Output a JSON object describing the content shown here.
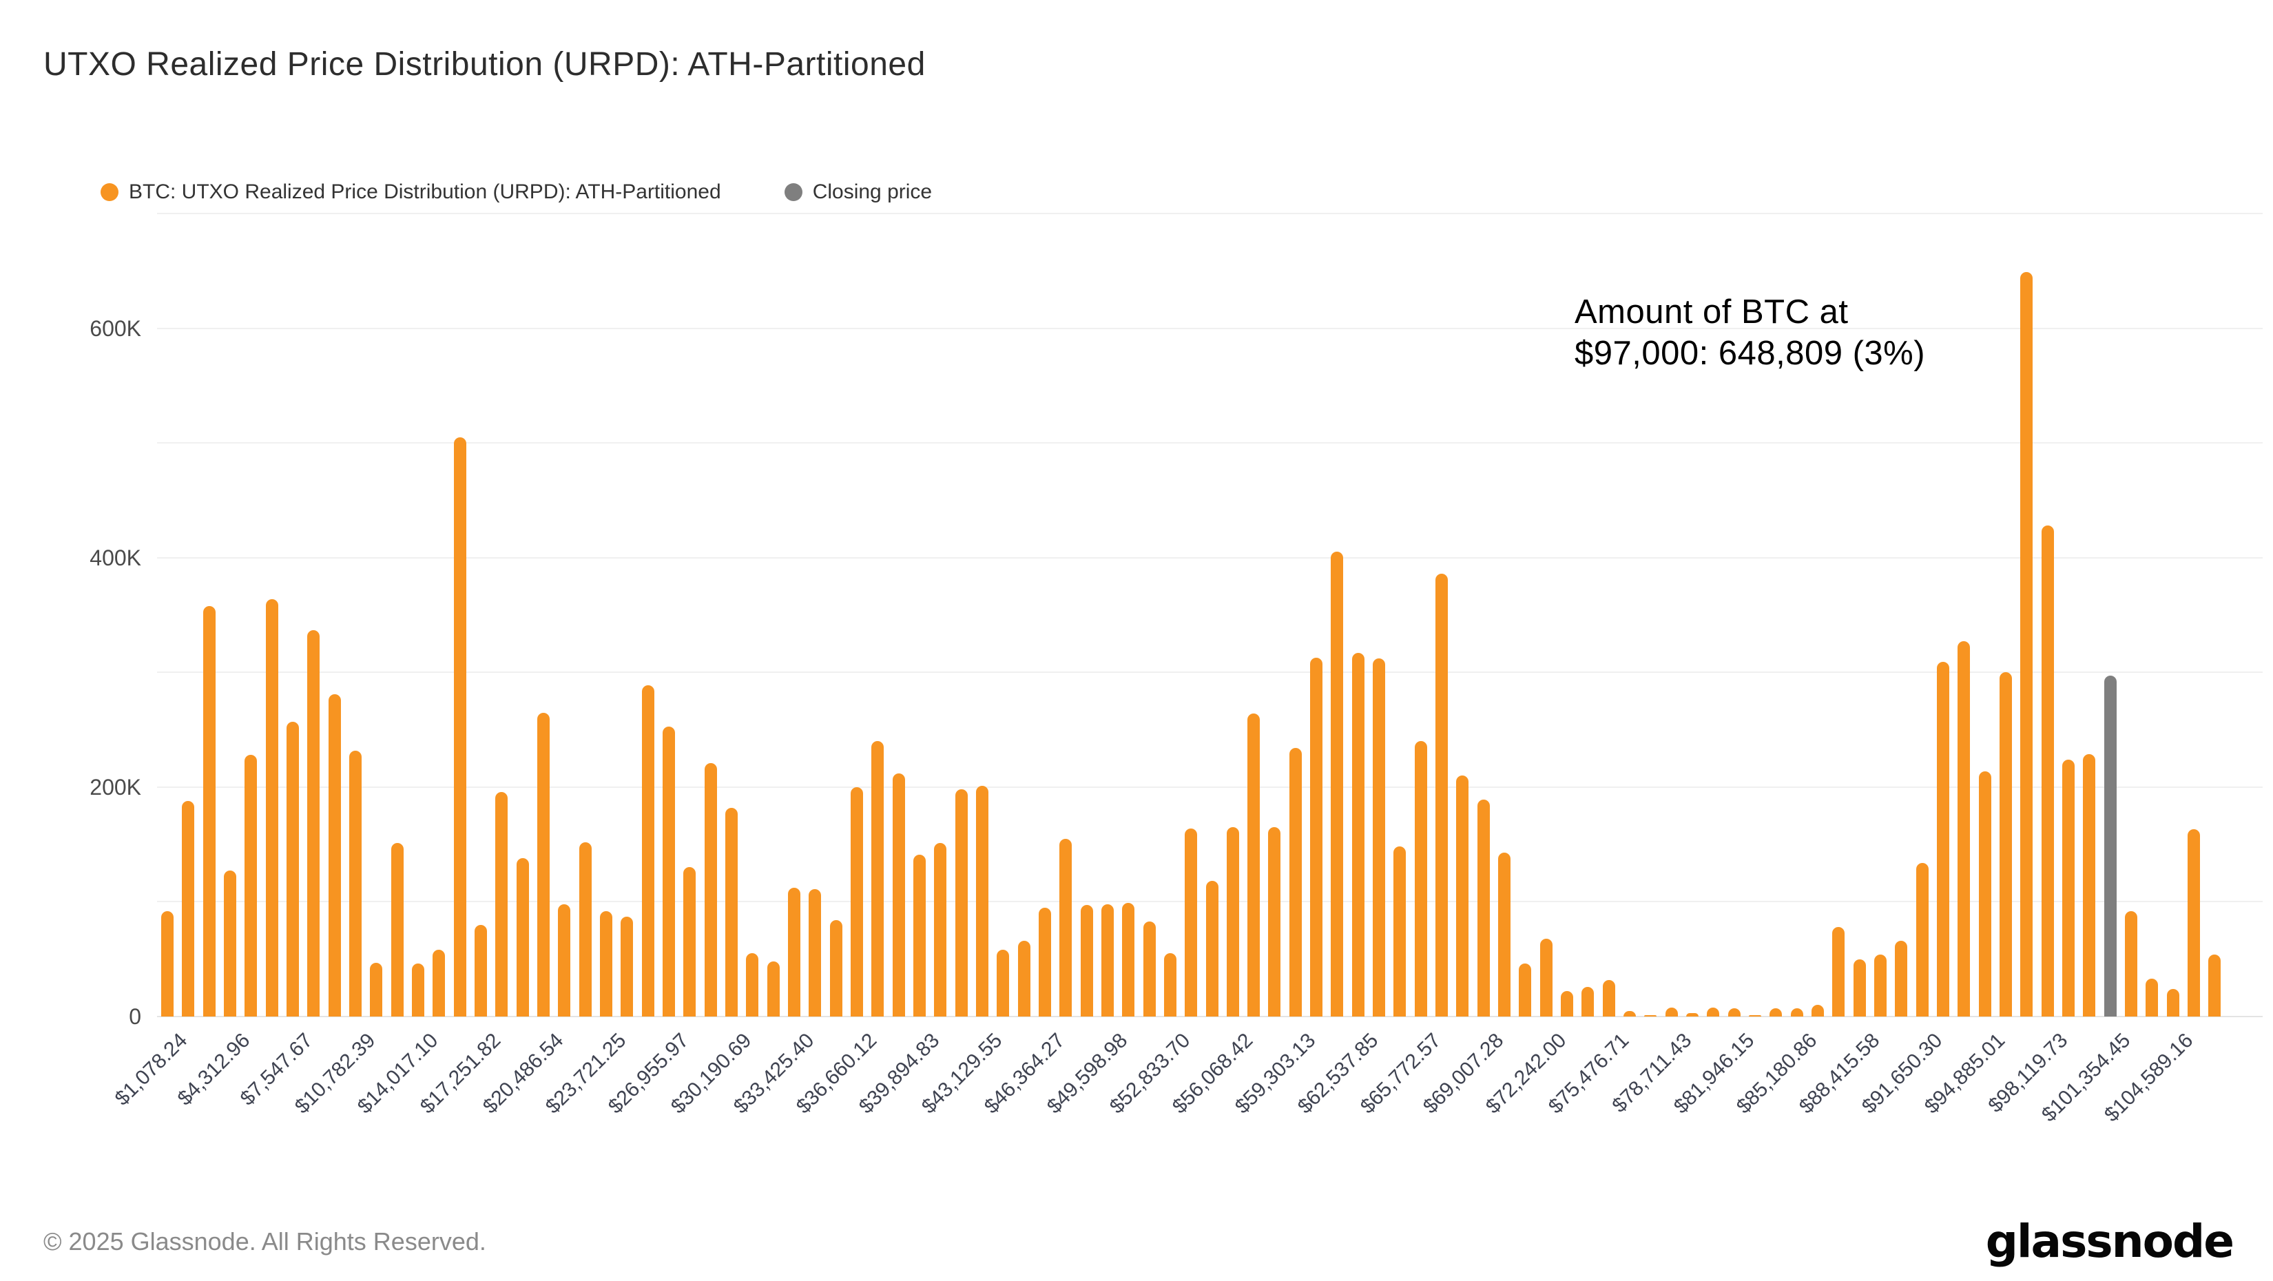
{
  "header": {
    "title": "UTXO Realized Price Distribution (URPD): ATH-Partitioned"
  },
  "legend": {
    "items": [
      {
        "label": "BTC: UTXO Realized Price Distribution (URPD): ATH-Partitioned",
        "color": "#F79421"
      },
      {
        "label": "Closing price",
        "color": "#7F7F7F"
      }
    ]
  },
  "annotation": {
    "line1": "Amount of BTC at",
    "line2": "$97,000: 648,809 (3%)"
  },
  "footer": {
    "copyright": "© 2025 Glassnode. All Rights Reserved.",
    "brand": "glassnode"
  },
  "colors": {
    "bar": "#F79421",
    "closing_bar": "#7F7F7F",
    "gridline": "#F0F0F0",
    "axis_line": "#E4E4E4",
    "axis_text": "#4A4A4A",
    "xlabel_text": "#3F4351"
  },
  "chart_data": {
    "type": "bar",
    "title": "UTXO Realized Price Distribution (URPD): ATH-Partitioned",
    "xlabel": "",
    "ylabel": "",
    "values_unit": "BTC",
    "ylim": [
      0,
      700000
    ],
    "grid": true,
    "legend_position": "top-left",
    "ytick_values": [
      0,
      200000,
      400000,
      600000
    ],
    "ytick_labels": [
      "0",
      "200K",
      "400K",
      "600K"
    ],
    "x_labels": [
      "$1,078.24",
      "$4,312.96",
      "$7,547.67",
      "$10,782.39",
      "$14,017.10",
      "$17,251.82",
      "$20,486.54",
      "$23,721.25",
      "$26,955.97",
      "$30,190.69",
      "$33,425.40",
      "$36,660.12",
      "$39,894.83",
      "$43,129.55",
      "$46,364.27",
      "$49,598.98",
      "$52,833.70",
      "$56,068.42",
      "$59,303.13",
      "$62,537.85",
      "$65,772.57",
      "$69,007.28",
      "$72,242.00",
      "$75,476.71",
      "$78,711.43",
      "$81,946.15",
      "$85,180.86",
      "$88,415.58",
      "$91,650.30",
      "$94,885.01",
      "$98,119.73",
      "$101,354.45",
      "$104,589.16"
    ],
    "label_every_n_bars": 3,
    "series": [
      {
        "name": "BTC: UTXO Realized Price Distribution (URPD): ATH-Partitioned",
        "color": "#F79421",
        "values": [
          92000,
          188000,
          358000,
          127000,
          228000,
          364000,
          257000,
          337000,
          281000,
          232000,
          47000,
          151000,
          46000,
          58000,
          505000,
          80000,
          196000,
          138000,
          265000,
          98000,
          152000,
          92000,
          87000,
          289000,
          253000,
          130000,
          221000,
          182000,
          55000,
          48000,
          112000,
          111000,
          84000,
          200000,
          240000,
          212000,
          141000,
          151000,
          198000,
          201000,
          58000,
          66000,
          95000,
          155000,
          97000,
          98000,
          99000,
          83000,
          55000,
          164000,
          118000,
          165000,
          264000,
          165000,
          234000,
          313000,
          405000,
          317000,
          312000,
          148000,
          240000,
          386000,
          210000,
          189000,
          143000,
          46000,
          68000,
          22000,
          26000,
          32000,
          5000,
          1000,
          8000,
          3000,
          8000,
          7000,
          1000,
          7000,
          7000,
          10000,
          78000,
          50000,
          54000,
          66000,
          134000,
          309000,
          327000,
          214000,
          300000,
          648809,
          428000,
          224000,
          229000,
          null,
          92000,
          33000,
          24000,
          163000,
          54000
        ]
      }
    ],
    "closing_price_bar": {
      "name": "Closing price",
      "index": 93,
      "value": 297000,
      "color": "#7F7F7F"
    },
    "highlighted_value": {
      "price": "$97,000",
      "amount_btc": 648809,
      "percent": "3%"
    }
  }
}
